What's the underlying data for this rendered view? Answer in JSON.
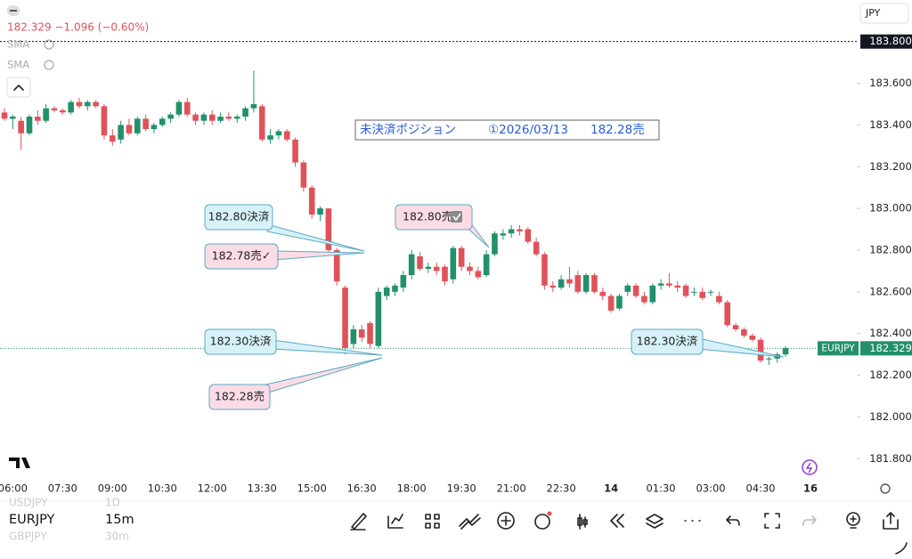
{
  "header": {
    "price_line": "182.329 −1.096 (−0.60%)",
    "indicators": [
      "SMA",
      "SMA"
    ],
    "currency": "JPY"
  },
  "chart_data": {
    "type": "candlestick",
    "ylim": [
      181.72,
      183.82
    ],
    "yticks": [
      {
        "value": 183.6,
        "label": "183.600"
      },
      {
        "value": 183.4,
        "label": "183.400"
      },
      {
        "value": 183.2,
        "label": "183.200"
      },
      {
        "value": 183.0,
        "label": "183.000"
      },
      {
        "value": 182.8,
        "label": "182.800"
      },
      {
        "value": 182.6,
        "label": "182.600"
      },
      {
        "value": 182.4,
        "label": "182.400"
      },
      {
        "value": 182.2,
        "label": "182.200"
      },
      {
        "value": 182.0,
        "label": "182.000"
      },
      {
        "value": 181.8,
        "label": "181.800"
      }
    ],
    "xtick_labels": [
      "06:00",
      "07:30",
      "09:00",
      "10:30",
      "12:00",
      "13:30",
      "15:00",
      "16:30",
      "18:00",
      "19:30",
      "21:00",
      "22:30",
      "14",
      "01:30",
      "03:00",
      "04:30",
      "16"
    ],
    "colors": {
      "up": "#22906b",
      "down": "#e0525a"
    },
    "last_price": {
      "symbol": "EURJPY",
      "value": 182.329,
      "label": "182.329"
    },
    "top_line": {
      "value": 183.8,
      "label": "183.800"
    },
    "candles": [
      [
        183.46,
        183.48,
        183.42,
        183.43
      ],
      [
        183.43,
        183.45,
        183.38,
        183.44
      ],
      [
        183.42,
        183.44,
        183.28,
        183.36
      ],
      [
        183.36,
        183.45,
        183.35,
        183.44
      ],
      [
        183.44,
        183.47,
        183.4,
        183.42
      ],
      [
        183.42,
        183.5,
        183.41,
        183.48
      ],
      [
        183.48,
        183.49,
        183.46,
        183.47
      ],
      [
        183.47,
        183.48,
        183.45,
        183.46
      ],
      [
        183.46,
        183.52,
        183.45,
        183.51
      ],
      [
        183.51,
        183.53,
        183.48,
        183.49
      ],
      [
        183.49,
        183.52,
        183.47,
        183.51
      ],
      [
        183.51,
        183.52,
        183.48,
        183.49
      ],
      [
        183.49,
        183.5,
        183.33,
        183.35
      ],
      [
        183.35,
        183.38,
        183.3,
        183.32
      ],
      [
        183.33,
        183.42,
        183.31,
        183.4
      ],
      [
        183.4,
        183.43,
        183.35,
        183.36
      ],
      [
        183.36,
        183.44,
        183.35,
        183.43
      ],
      [
        183.43,
        183.45,
        183.37,
        183.38
      ],
      [
        183.38,
        183.41,
        183.36,
        183.4
      ],
      [
        183.4,
        183.44,
        183.39,
        183.43
      ],
      [
        183.43,
        183.46,
        183.41,
        183.45
      ],
      [
        183.45,
        183.52,
        183.44,
        183.51
      ],
      [
        183.51,
        183.53,
        183.44,
        183.45
      ],
      [
        183.45,
        183.46,
        183.4,
        183.42
      ],
      [
        183.42,
        183.46,
        183.4,
        183.45
      ],
      [
        183.45,
        183.47,
        183.4,
        183.42
      ],
      [
        183.42,
        183.46,
        183.41,
        183.44
      ],
      [
        183.44,
        183.46,
        183.42,
        183.43
      ],
      [
        183.43,
        183.45,
        183.41,
        183.44
      ],
      [
        183.44,
        183.49,
        183.42,
        183.48
      ],
      [
        183.48,
        183.66,
        183.46,
        183.5
      ],
      [
        183.49,
        183.5,
        183.32,
        183.33
      ],
      [
        183.33,
        183.38,
        183.31,
        183.35
      ],
      [
        183.35,
        183.38,
        183.33,
        183.37
      ],
      [
        183.37,
        183.38,
        183.32,
        183.33
      ],
      [
        183.33,
        183.34,
        183.2,
        183.22
      ],
      [
        183.22,
        183.23,
        183.08,
        183.1
      ],
      [
        183.1,
        183.11,
        182.95,
        182.97
      ],
      [
        182.97,
        183.01,
        182.94,
        183.0
      ],
      [
        183.0,
        183.0,
        182.78,
        182.8
      ],
      [
        182.8,
        182.81,
        182.63,
        182.65
      ],
      [
        182.62,
        182.63,
        182.3,
        182.33
      ],
      [
        182.35,
        182.44,
        182.33,
        182.42
      ],
      [
        182.42,
        182.44,
        182.36,
        182.38
      ],
      [
        182.45,
        182.46,
        182.33,
        182.35
      ],
      [
        182.34,
        182.62,
        182.33,
        182.6
      ],
      [
        182.58,
        182.63,
        182.56,
        182.62
      ],
      [
        182.6,
        182.64,
        182.58,
        182.63
      ],
      [
        182.62,
        182.7,
        182.6,
        182.68
      ],
      [
        182.68,
        182.8,
        182.66,
        182.78
      ],
      [
        182.77,
        182.79,
        182.7,
        182.71
      ],
      [
        182.71,
        182.74,
        182.69,
        182.72
      ],
      [
        182.72,
        182.74,
        182.68,
        182.7
      ],
      [
        182.72,
        182.73,
        182.63,
        182.65
      ],
      [
        182.66,
        182.82,
        182.64,
        182.81
      ],
      [
        182.81,
        182.82,
        182.7,
        182.72
      ],
      [
        182.72,
        182.74,
        182.68,
        182.7
      ],
      [
        182.7,
        182.72,
        182.66,
        182.67
      ],
      [
        182.68,
        182.8,
        182.67,
        182.78
      ],
      [
        182.78,
        182.89,
        182.77,
        182.88
      ],
      [
        182.87,
        182.9,
        182.85,
        182.88
      ],
      [
        182.88,
        182.92,
        182.86,
        182.9
      ],
      [
        182.9,
        182.92,
        182.87,
        182.89
      ],
      [
        182.9,
        182.91,
        182.83,
        182.84
      ],
      [
        182.84,
        182.86,
        182.77,
        182.78
      ],
      [
        182.78,
        182.79,
        182.61,
        182.63
      ],
      [
        182.63,
        182.65,
        182.6,
        182.62
      ],
      [
        182.62,
        182.68,
        182.61,
        182.66
      ],
      [
        182.66,
        182.72,
        182.62,
        182.64
      ],
      [
        182.68,
        182.7,
        182.59,
        182.6
      ],
      [
        182.6,
        182.69,
        182.59,
        182.68
      ],
      [
        182.68,
        182.69,
        182.59,
        182.6
      ],
      [
        182.6,
        182.62,
        182.56,
        182.58
      ],
      [
        182.58,
        182.59,
        182.5,
        182.51
      ],
      [
        182.52,
        182.59,
        182.51,
        182.58
      ],
      [
        182.6,
        182.64,
        182.58,
        182.63
      ],
      [
        182.63,
        182.64,
        182.57,
        182.58
      ],
      [
        182.58,
        182.6,
        182.54,
        182.55
      ],
      [
        182.55,
        182.64,
        182.54,
        182.63
      ],
      [
        182.63,
        182.66,
        182.61,
        182.64
      ],
      [
        182.64,
        182.69,
        182.62,
        182.63
      ],
      [
        182.63,
        182.65,
        182.6,
        182.62
      ],
      [
        182.63,
        182.64,
        182.57,
        182.58
      ],
      [
        182.6,
        182.62,
        182.58,
        182.6
      ],
      [
        182.6,
        182.62,
        182.56,
        182.57
      ],
      [
        182.6,
        182.61,
        182.58,
        182.6
      ],
      [
        182.58,
        182.6,
        182.54,
        182.55
      ],
      [
        182.55,
        182.56,
        182.43,
        182.44
      ],
      [
        182.44,
        182.45,
        182.41,
        182.42
      ],
      [
        182.42,
        182.43,
        182.38,
        182.39
      ],
      [
        182.39,
        182.4,
        182.36,
        182.37
      ],
      [
        182.37,
        182.38,
        182.26,
        182.27
      ],
      [
        182.28,
        182.29,
        182.25,
        182.28
      ],
      [
        182.28,
        182.31,
        182.26,
        182.3
      ],
      [
        182.3,
        182.34,
        182.29,
        182.33
      ]
    ]
  },
  "annotations": {
    "position_box": [
      "未決済ポジション",
      "①2026/03/13",
      "182.28売"
    ],
    "callouts": [
      "182.80決済",
      "182.78売✓",
      "182.30決済",
      "182.28売",
      "182.80売",
      "182.30決済"
    ]
  },
  "toolbar": {
    "symbols": [
      {
        "symbol": "USDJPY",
        "interval": "1D"
      },
      {
        "symbol": "EURJPY",
        "interval": "15m"
      },
      {
        "symbol": "GBPJPY",
        "interval": "30m"
      }
    ]
  }
}
